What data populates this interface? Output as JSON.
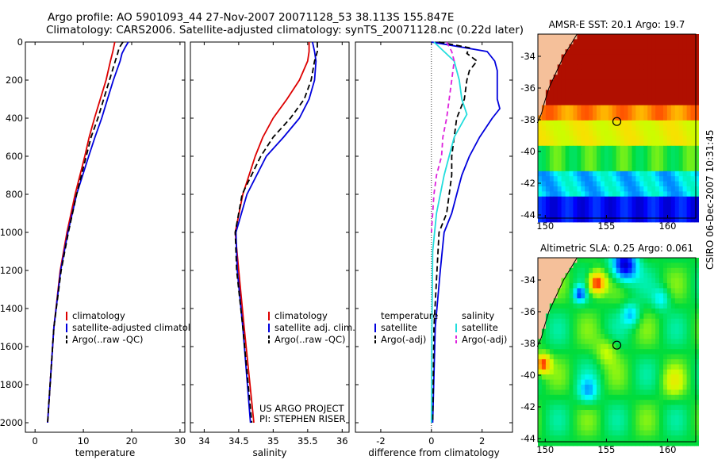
{
  "title_line1": "Argo profile: AO 5901093_44 27-Nov-2007 20071128_53 38.113S 155.847E",
  "title_line2": "Climatology: CARS2006. Satellite-adjusted climatology: synTS_20071128.nc (0.22d later)",
  "side_stamp": "CSIRO 06-Dec-2007 10:31:45",
  "credit": [
    "US ARGO PROJECT",
    "PI: STEPHEN RISER"
  ],
  "colors": {
    "red": "#dd0000",
    "blue": "#0000dd",
    "black": "#000000",
    "cyan": "#22dddd",
    "magenta": "#dd22dd",
    "land": "#f5c09a"
  },
  "chart_data": [
    {
      "type": "line",
      "id": "temperature",
      "xlabel": "temperature",
      "xlim": [
        -2,
        31
      ],
      "ylim": [
        2050,
        0
      ],
      "xticks": [
        0,
        10,
        20,
        30
      ],
      "yticks": [
        0,
        200,
        400,
        600,
        800,
        1000,
        1200,
        1400,
        1600,
        1800,
        2000
      ],
      "legend": [
        "climatology",
        "satellite-adjusted climatology",
        "Argo(..raw -QC)"
      ],
      "series": [
        {
          "name": "climatology",
          "color": "#dd0000",
          "dash": "",
          "depth": [
            0,
            50,
            100,
            200,
            300,
            400,
            500,
            600,
            800,
            1000,
            1200,
            1500,
            2000
          ],
          "values": [
            16.5,
            16.1,
            15.6,
            14.7,
            13.5,
            12.3,
            11.2,
            10.3,
            8.3,
            6.6,
            5.2,
            3.9,
            2.6
          ]
        },
        {
          "name": "satellite-adjusted climatology",
          "color": "#0000dd",
          "dash": "",
          "depth": [
            0,
            30,
            60,
            100,
            200,
            300,
            400,
            500,
            600,
            800,
            1000,
            1200,
            1500,
            2000
          ],
          "values": [
            19.3,
            18.6,
            18.0,
            17.6,
            16.2,
            15.0,
            13.8,
            12.4,
            11.1,
            8.6,
            6.8,
            5.3,
            3.9,
            2.6
          ]
        },
        {
          "name": "Argo(..raw -QC)",
          "color": "#000000",
          "dash": "7,4",
          "depth": [
            0,
            30,
            60,
            100,
            200,
            300,
            400,
            500,
            600,
            800,
            1000,
            1200,
            1500,
            2000
          ],
          "values": [
            18.2,
            17.4,
            17.1,
            16.6,
            15.4,
            14.2,
            13.0,
            11.6,
            10.6,
            8.6,
            6.9,
            5.4,
            3.9,
            2.6
          ]
        }
      ]
    },
    {
      "type": "line",
      "id": "salinity",
      "xlabel": "salinity",
      "xlim": [
        33.8,
        36.1
      ],
      "ylim": [
        2050,
        0
      ],
      "xticks": [
        34,
        34.5,
        35,
        35.5,
        36
      ],
      "xticklabels": [
        "34",
        "34.5",
        "35",
        "35.5",
        "36"
      ],
      "legend": [
        "climatology",
        "satellite adj. clim.",
        "Argo(..raw -QC)"
      ],
      "series": [
        {
          "name": "climatology",
          "color": "#dd0000",
          "dash": "",
          "depth": [
            0,
            50,
            100,
            200,
            300,
            400,
            500,
            600,
            800,
            1000,
            1200,
            1500,
            2000
          ],
          "values": [
            35.52,
            35.52,
            35.5,
            35.38,
            35.2,
            35.0,
            34.85,
            34.74,
            34.56,
            34.45,
            34.5,
            34.58,
            34.72
          ]
        },
        {
          "name": "satellite adj. clim.",
          "color": "#0000dd",
          "dash": "",
          "depth": [
            0,
            50,
            100,
            200,
            300,
            400,
            500,
            600,
            800,
            1000,
            1200,
            1500,
            2000
          ],
          "values": [
            35.57,
            35.6,
            35.62,
            35.6,
            35.52,
            35.38,
            35.15,
            34.9,
            34.62,
            34.46,
            34.48,
            34.56,
            34.67
          ]
        },
        {
          "name": "Argo(..raw -QC)",
          "color": "#000000",
          "dash": "7,4",
          "depth": [
            0,
            50,
            100,
            200,
            300,
            400,
            500,
            600,
            800,
            1000,
            1200,
            1500,
            2000
          ],
          "values": [
            35.64,
            35.64,
            35.6,
            35.55,
            35.45,
            35.25,
            35.0,
            34.82,
            34.55,
            34.45,
            34.47,
            34.56,
            34.69
          ]
        }
      ]
    },
    {
      "type": "line",
      "id": "difference",
      "xlabel": "difference from climatology",
      "xlim": [
        -3,
        3.2
      ],
      "ylim": [
        2050,
        0
      ],
      "xticks": [
        -2,
        0,
        2
      ],
      "legend_left": [
        "temperature",
        "satellite",
        "Argo(-adj)"
      ],
      "legend_right": [
        "salinity",
        "satellite",
        "Argo(-adj)"
      ],
      "series": [
        {
          "name": "temperature satellite",
          "color": "#0000dd",
          "dash": "",
          "depth": [
            0,
            20,
            50,
            100,
            150,
            200,
            300,
            350,
            400,
            500,
            600,
            700,
            800,
            900,
            1000,
            1200,
            1500,
            2000
          ],
          "values": [
            0.0,
            0.9,
            2.2,
            2.5,
            2.6,
            2.6,
            2.6,
            2.7,
            2.4,
            1.9,
            1.5,
            1.2,
            1.0,
            0.8,
            0.5,
            0.35,
            0.15,
            0.05
          ]
        },
        {
          "name": "temperature Argo(-adj)",
          "color": "#000000",
          "dash": "7,4",
          "depth": [
            0,
            30,
            60,
            100,
            150,
            200,
            300,
            400,
            500,
            600,
            700,
            800,
            900,
            1000,
            1500,
            2000
          ],
          "values": [
            0.3,
            1.5,
            1.4,
            1.8,
            1.5,
            1.4,
            1.3,
            1.0,
            0.9,
            0.8,
            0.8,
            0.7,
            0.6,
            0.3,
            0.1,
            0.05
          ]
        },
        {
          "name": "salinity satellite",
          "color": "#22dddd",
          "dash": "",
          "depth": [
            0,
            100,
            200,
            300,
            380,
            500,
            700,
            900,
            1100,
            1500,
            2000
          ],
          "values": [
            0.1,
            0.9,
            1.1,
            1.2,
            1.4,
            0.9,
            0.5,
            0.2,
            0.05,
            0.02,
            0.0
          ]
        },
        {
          "name": "salinity Argo(-adj)",
          "color": "#dd22dd",
          "dash": "6,4",
          "depth": [
            0,
            50,
            100,
            200,
            300,
            400,
            500,
            600,
            700,
            800,
            900,
            1000
          ],
          "values": [
            0.6,
            0.8,
            0.9,
            0.8,
            0.7,
            0.6,
            0.45,
            0.4,
            0.2,
            0.1,
            0.05,
            0.0
          ]
        }
      ]
    },
    {
      "type": "heatmap",
      "id": "sst-map",
      "title": "AMSR-E SST: 20.1 Argo: 19.7",
      "xlim": [
        149.4,
        162.3
      ],
      "ylim": [
        -44.2,
        -32.6
      ],
      "xticks": [
        150,
        155,
        160
      ],
      "yticks": [
        -34,
        -36,
        -38,
        -40,
        -42,
        -44
      ],
      "argo_marker": {
        "lon": 155.85,
        "lat": -38.11
      }
    },
    {
      "type": "heatmap",
      "id": "sla-map",
      "title": "Altimetric SLA: 0.25 Argo: 0.061",
      "xlim": [
        149.4,
        162.3
      ],
      "ylim": [
        -44.2,
        -32.6
      ],
      "xticks": [
        150,
        155,
        160
      ],
      "yticks": [
        -34,
        -36,
        -38,
        -40,
        -42,
        -44
      ],
      "argo_marker": {
        "lon": 155.85,
        "lat": -38.11
      }
    }
  ]
}
